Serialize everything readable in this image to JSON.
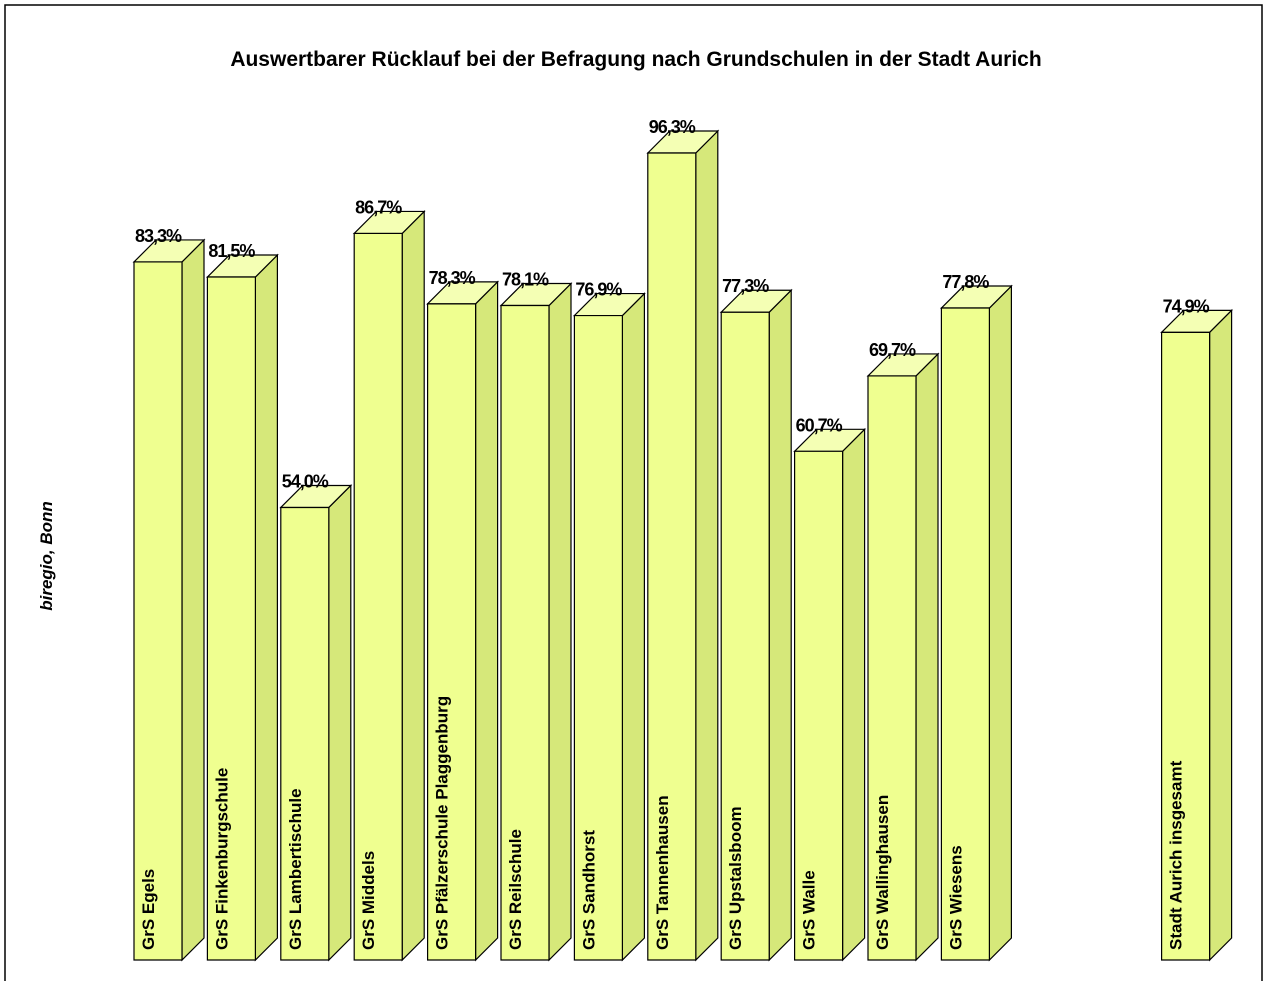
{
  "chart_data": {
    "type": "bar3d",
    "title": "Auswertbarer Rücklauf bei der Befragung nach Grundschulen in der Stadt Aurich",
    "source": "biregio, Bonn",
    "categories": [
      "GrS Egels",
      "GrS Finkenburgschule",
      "GrS Lambertischule",
      "GrS Middels",
      "GrS Pfälzerschule Plaggenburg",
      "GrS Reilschule",
      "GrS Sandhorst",
      "GrS Tannenhausen",
      "GrS Upstalsboom",
      "GrS Walle",
      "GrS Wallinghausen",
      "GrS Wiesens",
      null,
      null,
      "Stadt Aurich insgesamt"
    ],
    "values": [
      83.3,
      81.5,
      54.0,
      86.7,
      78.3,
      78.1,
      76.9,
      96.3,
      77.3,
      60.7,
      69.7,
      77.8,
      null,
      null,
      74.9
    ],
    "value_labels": [
      "83,3%",
      "81,5%",
      "54,0%",
      "86,7%",
      "78,3%",
      "78,1%",
      "76,9%",
      "96,3%",
      "77,3%",
      "60,7%",
      "69,7%",
      "77,8%",
      null,
      null,
      "74,9%"
    ],
    "color": "#efff90"
  }
}
